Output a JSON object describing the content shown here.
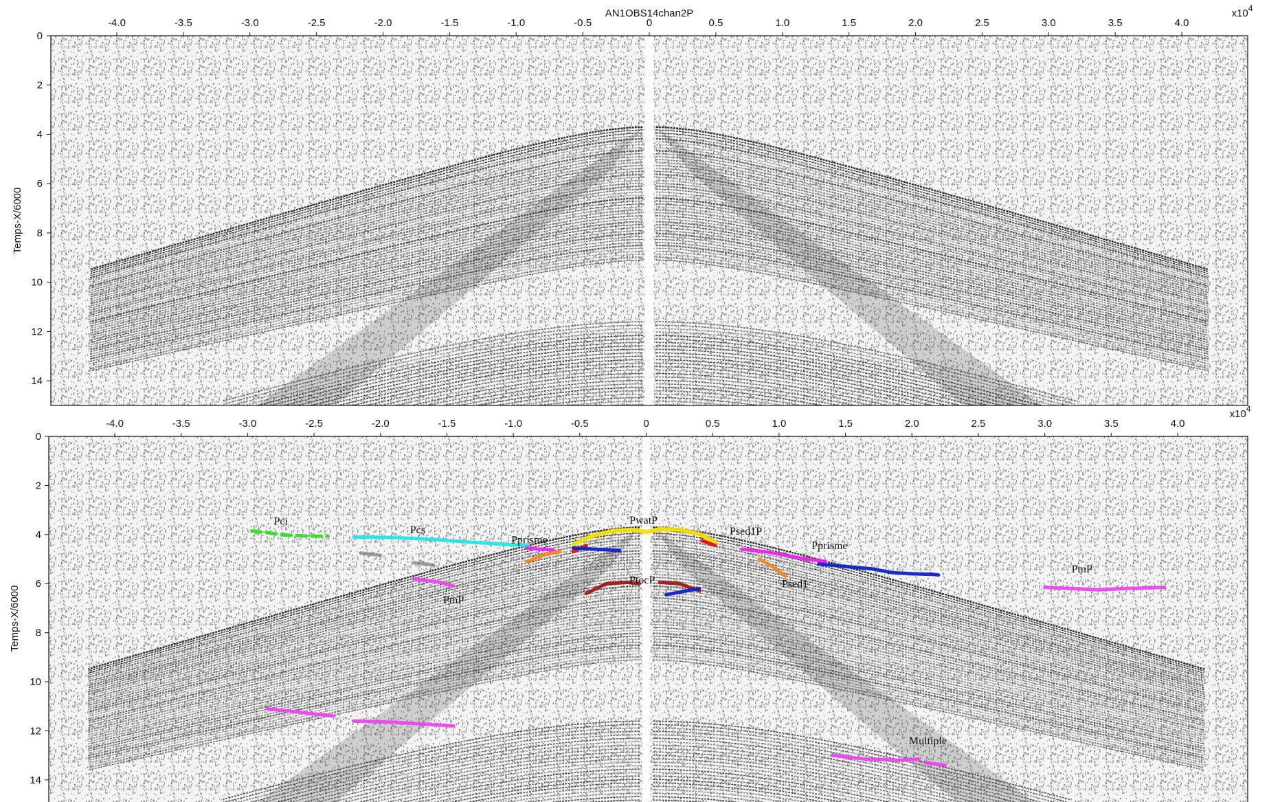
{
  "title": "AN1OBS14chan2P",
  "multiplier_text": "x10",
  "multiplier_exp": "4",
  "x_ticks": [
    "-4.0",
    "-3.5",
    "-3.0",
    "-2.5",
    "-2.0",
    "-1.5",
    "-1.0",
    "-0.5",
    "0",
    "0.5",
    "1.0",
    "1.5",
    "2.0",
    "2.5",
    "3.0",
    "3.5",
    "4.0"
  ],
  "y_ticks": [
    "0",
    "2",
    "4",
    "6",
    "8",
    "10",
    "12",
    "14"
  ],
  "ylabel": "Temps-X/6000",
  "panels": [
    {
      "name": "raw",
      "x_range": [
        -4.5,
        4.5
      ],
      "y_range": [
        0,
        15
      ]
    },
    {
      "name": "picked",
      "x_range": [
        -4.5,
        4.5
      ],
      "y_range": [
        0,
        15
      ]
    }
  ],
  "colors": {
    "Pci": "#33dd22",
    "Pcs": "#22e6e6",
    "Pprisme": "#ee22ee",
    "PwatP": "#f2e000",
    "Psed1P": "#e01010",
    "Psed1": "#f08a20",
    "Pprisme_deep": "#1020c8",
    "PtocP": "#a01818",
    "PmP": "#ee44ee",
    "Multiple": "#ee44ee",
    "ghost": "#777777"
  },
  "phase_labels": [
    {
      "text": "Pci",
      "x": -2.75,
      "y": 3.6
    },
    {
      "text": "Pcs",
      "x": -1.72,
      "y": 3.95
    },
    {
      "text": "Pprisme",
      "x": -0.88,
      "y": 4.35
    },
    {
      "text": "PwatP",
      "x": -0.02,
      "y": 3.55
    },
    {
      "text": "Psed1P",
      "x": 0.75,
      "y": 4.0
    },
    {
      "text": "Pprisme",
      "x": 1.38,
      "y": 4.6
    },
    {
      "text": "Psed1",
      "x": 1.12,
      "y": 6.15
    },
    {
      "text": "PtocP",
      "x": -0.03,
      "y": 6.0
    },
    {
      "text": "PmP",
      "x": -1.45,
      "y": 6.8
    },
    {
      "text": "PmP",
      "x": 3.28,
      "y": 5.55
    },
    {
      "text": "Multiple",
      "x": 2.12,
      "y": 12.55
    }
  ],
  "picks": [
    {
      "phase": "Pci",
      "points": [
        [
          -2.97,
          3.85
        ],
        [
          -2.82,
          3.95
        ],
        [
          -2.72,
          4.02
        ],
        [
          -2.6,
          4.05
        ],
        [
          -2.48,
          4.07
        ],
        [
          -2.4,
          4.07
        ]
      ]
    },
    {
      "phase": "Pcs",
      "points": [
        [
          -2.2,
          4.1
        ],
        [
          -1.9,
          4.12
        ],
        [
          -1.6,
          4.2
        ],
        [
          -1.3,
          4.32
        ],
        [
          -1.05,
          4.4
        ],
        [
          -0.9,
          4.45
        ]
      ]
    },
    {
      "phase": "Pprisme",
      "points": [
        [
          -0.9,
          4.55
        ],
        [
          -0.8,
          4.6
        ],
        [
          -0.7,
          4.62
        ]
      ]
    },
    {
      "phase": "PwatP",
      "points": [
        [
          -0.55,
          4.4
        ],
        [
          -0.4,
          4.05
        ],
        [
          -0.25,
          3.85
        ],
        [
          -0.1,
          3.8
        ],
        [
          0.0,
          3.9
        ],
        [
          0.1,
          3.78
        ],
        [
          0.25,
          3.8
        ],
        [
          0.4,
          3.98
        ],
        [
          0.52,
          4.3
        ]
      ]
    },
    {
      "phase": "Psed1P",
      "points": [
        [
          -0.55,
          4.7
        ],
        [
          -0.45,
          4.45
        ]
      ]
    },
    {
      "phase": "Psed1P",
      "points": [
        [
          0.42,
          4.25
        ],
        [
          0.52,
          4.45
        ]
      ]
    },
    {
      "phase": "Psed1",
      "points": [
        [
          -0.9,
          5.1
        ],
        [
          -0.75,
          4.8
        ],
        [
          -0.65,
          4.7
        ]
      ]
    },
    {
      "phase": "Psed1",
      "points": [
        [
          0.85,
          5.0
        ],
        [
          0.95,
          5.3
        ],
        [
          1.05,
          5.7
        ]
      ]
    },
    {
      "phase": "Pprisme",
      "points": [
        [
          0.72,
          4.6
        ],
        [
          0.9,
          4.7
        ],
        [
          1.05,
          4.85
        ],
        [
          1.2,
          5.0
        ],
        [
          1.35,
          5.1
        ]
      ]
    },
    {
      "phase": "Pprisme_deep",
      "points": [
        [
          1.3,
          5.2
        ],
        [
          1.5,
          5.3
        ],
        [
          1.7,
          5.4
        ],
        [
          1.85,
          5.55
        ],
        [
          2.0,
          5.6
        ],
        [
          2.15,
          5.62
        ],
        [
          2.2,
          5.65
        ]
      ]
    },
    {
      "phase": "PtocP",
      "points": [
        [
          -0.45,
          6.4
        ],
        [
          -0.3,
          6.0
        ],
        [
          -0.15,
          5.95
        ],
        [
          -0.05,
          6.0
        ]
      ]
    },
    {
      "phase": "PtocP",
      "points": [
        [
          0.1,
          5.95
        ],
        [
          0.25,
          6.0
        ],
        [
          0.4,
          6.3
        ]
      ]
    },
    {
      "phase": "PmP",
      "points": [
        [
          -1.75,
          5.8
        ],
        [
          -1.55,
          5.95
        ],
        [
          -1.45,
          6.1
        ]
      ]
    },
    {
      "phase": "PmP",
      "points": [
        [
          3.0,
          6.15
        ],
        [
          3.2,
          6.2
        ],
        [
          3.4,
          6.25
        ],
        [
          3.6,
          6.2
        ],
        [
          3.9,
          6.15
        ]
      ]
    },
    {
      "phase": "PmP",
      "points": [
        [
          -2.85,
          11.1
        ],
        [
          -2.6,
          11.25
        ],
        [
          -2.35,
          11.4
        ]
      ]
    },
    {
      "phase": "PmP",
      "points": [
        [
          -2.2,
          11.6
        ],
        [
          -1.9,
          11.65
        ],
        [
          -1.6,
          11.75
        ],
        [
          -1.45,
          11.8
        ]
      ]
    },
    {
      "phase": "Multiple",
      "points": [
        [
          1.4,
          13.0
        ],
        [
          1.65,
          13.15
        ],
        [
          1.9,
          13.2
        ],
        [
          2.05,
          13.15
        ]
      ]
    },
    {
      "phase": "Multiple",
      "points": [
        [
          2.1,
          13.3
        ],
        [
          2.25,
          13.4
        ]
      ]
    },
    {
      "phase": "ghost",
      "points": [
        [
          -2.15,
          4.75
        ],
        [
          -2.0,
          4.85
        ]
      ]
    },
    {
      "phase": "ghost",
      "points": [
        [
          -1.75,
          5.15
        ],
        [
          -1.6,
          5.25
        ]
      ]
    },
    {
      "phase": "Pprisme_deep",
      "points": [
        [
          -0.55,
          4.55
        ],
        [
          -0.2,
          4.65
        ]
      ]
    },
    {
      "phase": "Pprisme_deep",
      "points": [
        [
          0.15,
          6.45
        ],
        [
          0.4,
          6.2
        ]
      ]
    }
  ],
  "seismic": {
    "shallow_apex_time": 3.7,
    "direct_slope": 0.165,
    "deep_apex_time": 11.6,
    "noise_level": 0.45
  }
}
